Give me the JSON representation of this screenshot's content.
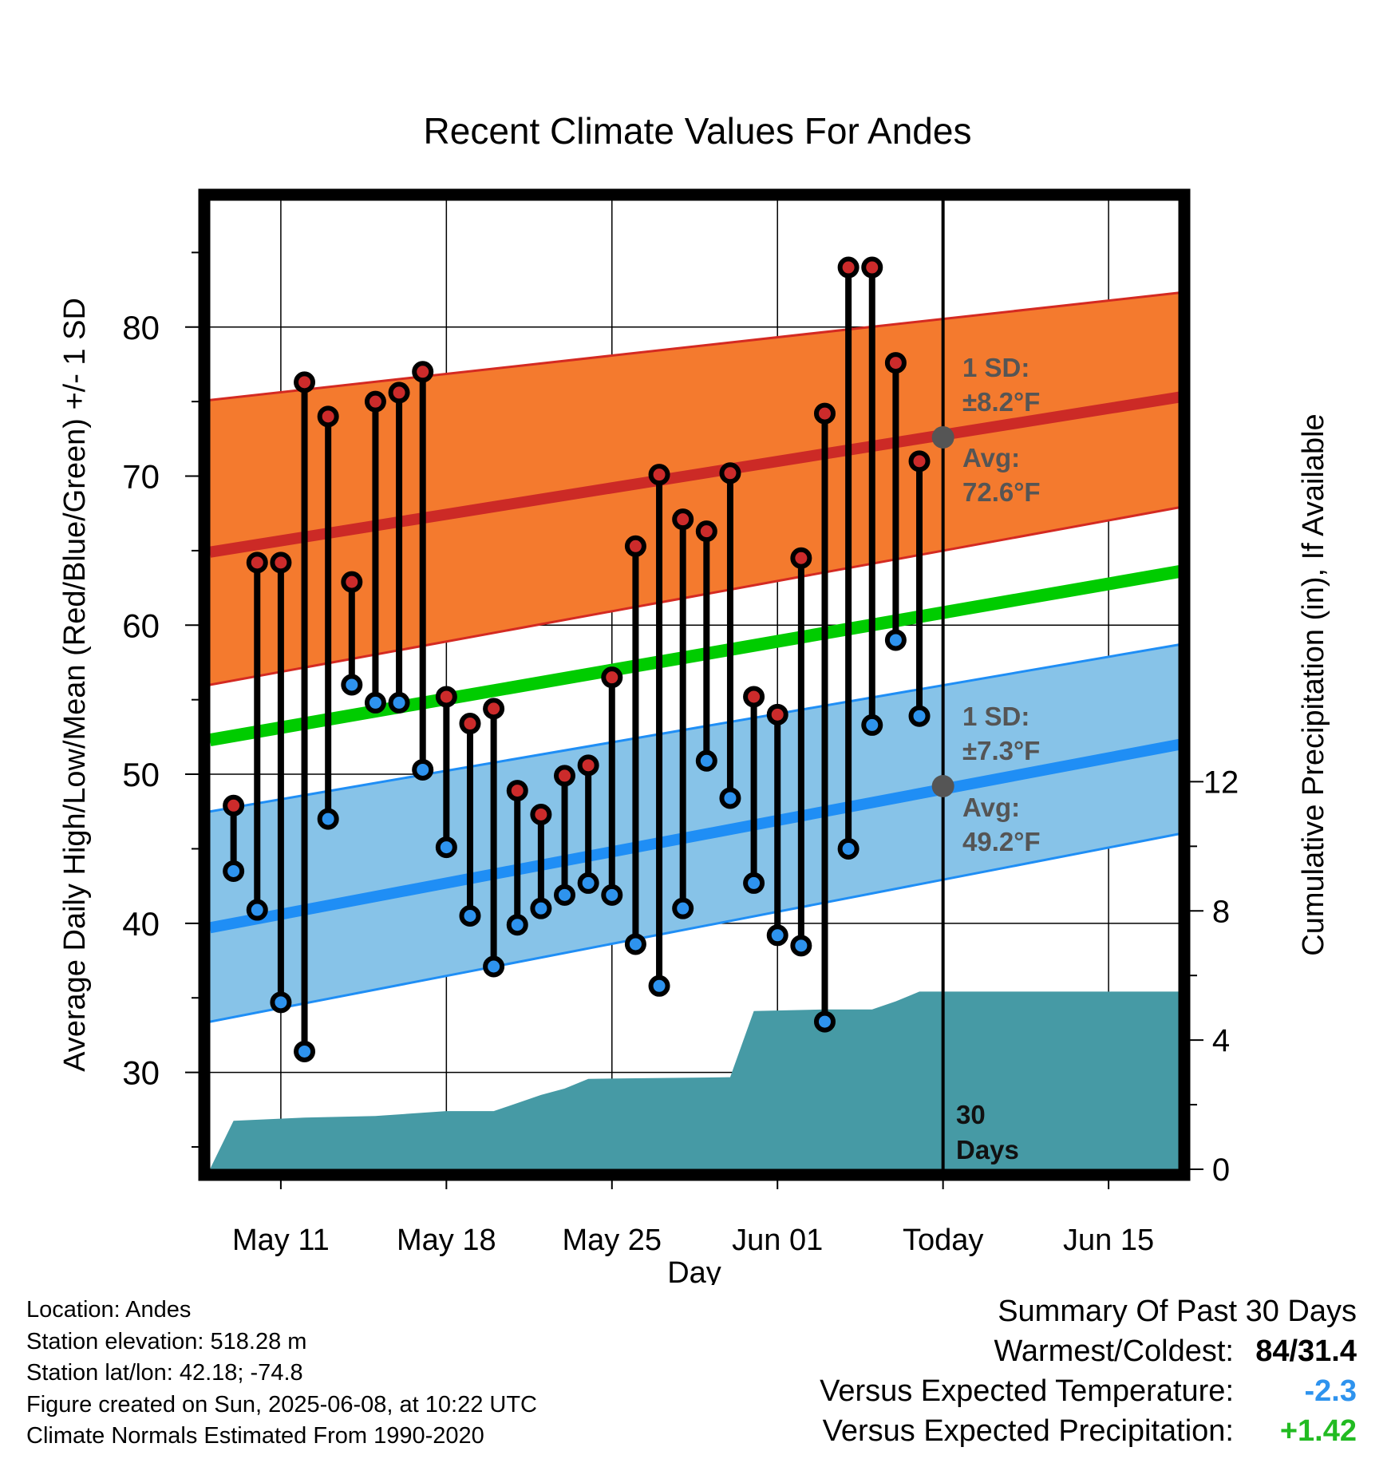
{
  "chart_data": {
    "type": "line",
    "title": "Recent Climate Values For Andes",
    "xlabel": "Day",
    "ylabel": "Average Daily High/Low/Mean (Red/Blue/Green) +/- 1 SD",
    "y2label": "Cumulative Precipitation (in), If Available",
    "x_tick_labels": [
      "May 11",
      "May 18",
      "May 25",
      "Jun 01",
      "Today",
      "Jun 15"
    ],
    "x_tick_days": [
      "2025-05-11",
      "2025-05-18",
      "2025-05-25",
      "2025-06-01",
      "2025-06-08",
      "2025-06-15"
    ],
    "xlim": [
      "2025-05-08",
      "2025-06-18"
    ],
    "ylim": [
      23.5,
      88.5
    ],
    "y_ticks": [
      30,
      40,
      50,
      60,
      70,
      80
    ],
    "y2lim": [
      0,
      30
    ],
    "y2_ticks": [
      0,
      4,
      8,
      12
    ],
    "grid": true,
    "days": [
      "2025-05-09",
      "2025-05-10",
      "2025-05-11",
      "2025-05-12",
      "2025-05-13",
      "2025-05-14",
      "2025-05-15",
      "2025-05-16",
      "2025-05-17",
      "2025-05-18",
      "2025-05-19",
      "2025-05-20",
      "2025-05-21",
      "2025-05-22",
      "2025-05-23",
      "2025-05-24",
      "2025-05-25",
      "2025-05-26",
      "2025-05-27",
      "2025-05-28",
      "2025-05-29",
      "2025-05-30",
      "2025-05-31",
      "2025-06-01",
      "2025-06-02",
      "2025-06-03",
      "2025-06-04",
      "2025-06-05",
      "2025-06-06",
      "2025-06-07"
    ],
    "highs": [
      47.9,
      64.2,
      64.2,
      76.3,
      74.0,
      62.9,
      75.0,
      75.6,
      77.0,
      55.2,
      53.4,
      54.4,
      48.9,
      47.3,
      49.9,
      50.6,
      56.5,
      65.3,
      70.1,
      67.1,
      66.3,
      70.2,
      55.2,
      54.0,
      64.5,
      74.2,
      84.0,
      84.0,
      77.6,
      71.0
    ],
    "lows": [
      43.5,
      40.9,
      34.7,
      31.4,
      47.0,
      56.0,
      54.8,
      54.8,
      50.3,
      45.1,
      40.5,
      37.1,
      39.9,
      41.0,
      41.9,
      42.7,
      41.9,
      38.6,
      35.8,
      41.0,
      50.9,
      48.4,
      42.7,
      39.2,
      38.5,
      33.4,
      45.0,
      53.3,
      59.0,
      53.9
    ],
    "normals": {
      "start": "2025-05-08",
      "end": "2025-06-18",
      "high_mean": [
        64.9,
        75.3
      ],
      "high_sd_upper": [
        75.1,
        82.3
      ],
      "high_sd_lower": [
        56.0,
        67.9
      ],
      "low_mean": [
        39.7,
        52.0
      ],
      "low_sd_upper": [
        47.5,
        58.7
      ],
      "low_sd_lower": [
        33.4,
        46.0
      ],
      "mean": [
        52.3,
        63.6
      ]
    },
    "precip_cumulative": {
      "days": [
        "2025-05-08",
        "2025-05-09",
        "2025-05-12",
        "2025-05-15",
        "2025-05-16",
        "2025-05-18",
        "2025-05-20",
        "2025-05-22",
        "2025-05-23",
        "2025-05-24",
        "2025-05-30",
        "2025-05-31",
        "2025-06-03",
        "2025-06-04",
        "2025-06-05",
        "2025-06-06",
        "2025-06-07",
        "2025-06-18"
      ],
      "values": [
        0.0,
        1.5,
        1.6,
        1.65,
        1.7,
        1.8,
        1.8,
        2.3,
        2.5,
        2.8,
        2.85,
        4.9,
        4.95,
        4.95,
        4.95,
        5.2,
        5.5,
        5.5
      ]
    },
    "annotations": {
      "high_sd": "1 SD:",
      "high_sd_value": "±8.2°F",
      "high_avg": "Avg:",
      "high_avg_value": "72.6°F",
      "low_sd": "1 SD:",
      "low_sd_value": "±7.3°F",
      "low_avg": "Avg:",
      "low_avg_value": "49.2°F",
      "today_high_avg": 72.6,
      "today_low_avg": 49.2,
      "days_line_1": "30",
      "days_line_2": "Days"
    },
    "colors": {
      "high_band": "#f47a2e",
      "high_line": "#cc2a26",
      "high_edge": "#d42a22",
      "low_band": "#87c3e8",
      "low_line": "#1f8ef5",
      "low_edge": "#1f8ef5",
      "mean_line": "#00cc00",
      "precip": "#469aa5",
      "high_dot": "#cc2b2b",
      "low_dot": "#2e93ee",
      "annotation": "#555555"
    }
  },
  "info": {
    "location": "Location: Andes",
    "elevation": "Station elevation: 518.28 m",
    "latlon": "Station lat/lon: 42.18; -74.8",
    "created": "Figure created on Sun, 2025-06-08, at 10:22 UTC",
    "normals": "Climate Normals Estimated From 1990-2020"
  },
  "summary": {
    "title": "Summary Of Past 30 Days",
    "warmest_label": "Warmest/Coldest:",
    "warmest_value": "84/31.4",
    "temp_label": "Versus Expected Temperature:",
    "temp_value": "-2.3",
    "temp_color": "#2e93ee",
    "precip_label": "Versus Expected Precipitation:",
    "precip_value": "+1.42",
    "precip_color": "#22bb22"
  }
}
